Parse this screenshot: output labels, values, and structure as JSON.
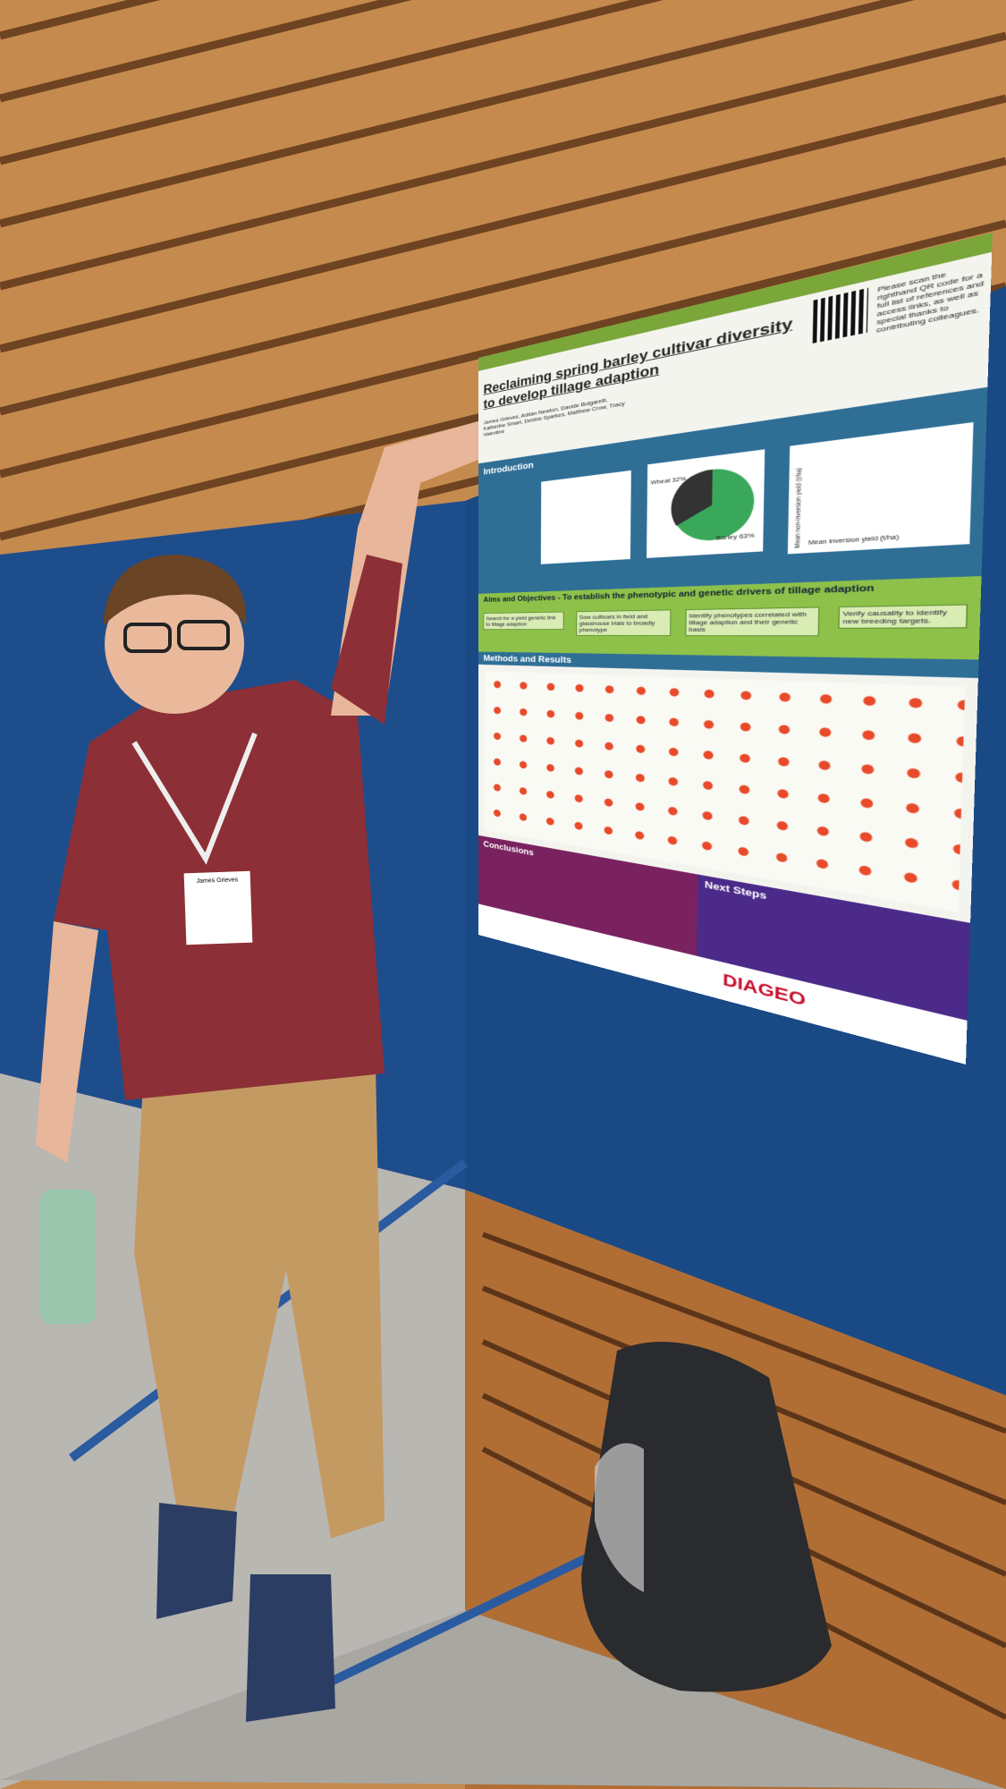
{
  "poster": {
    "title": "Reclaiming spring barley cultivar diversity to develop tillage adaption",
    "authors": "James Grieves, Adrian Newton, Davide Bulgarelli, Katherine Smart, Debbie Sparkes, Matthew Crow, Tracy Valentine",
    "qr_note": "Please scan the righthand QR code for a full list of references and access links, as well as special thanks to contributing colleagues.",
    "sections": {
      "introduction": "Introduction",
      "aims": "Aims and Objectives - To establish the phenotypic and genetic drivers of tillage adaption",
      "methods": "Methods and Results",
      "conclusions": "Conclusions",
      "next_steps": "Next Steps"
    },
    "aims_boxes": [
      "Search for a yield genetic link to tillage adaption",
      "Sow cultivars in field and glasshouse trials to broadly phenotype",
      "Identify phenotypes correlated with tillage adaption and their genetic basis",
      "Verify causality to identify new breeding targets."
    ],
    "pie_labels": [
      "Wheat 32%",
      "Barley 63%"
    ],
    "scatter_axes": {
      "x": "Mean inversion yield (t/ha)",
      "y": "Mean non-inversion yield (t/ha)"
    },
    "sponsor": "DIAGEO"
  },
  "badge": {
    "name": "James Grieves"
  }
}
